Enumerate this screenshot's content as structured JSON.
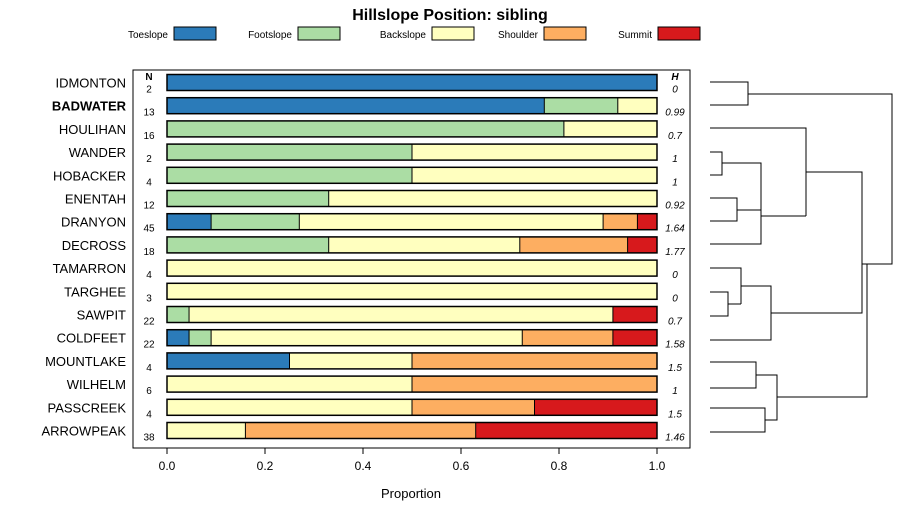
{
  "chart_data": {
    "type": "bar",
    "stacked": true,
    "orientation": "horizontal",
    "title": "Hillslope Position: sibling",
    "xlabel": "Proportion",
    "xlim": [
      0,
      1
    ],
    "xticks": [
      "0.0",
      "0.2",
      "0.4",
      "0.6",
      "0.8",
      "1.0"
    ],
    "n_header": "N",
    "h_header": "H",
    "legend": [
      {
        "name": "Toeslope",
        "color": "#2B7BB9"
      },
      {
        "name": "Footslope",
        "color": "#ABDDA4"
      },
      {
        "name": "Backslope",
        "color": "#FFFFBF"
      },
      {
        "name": "Shoulder",
        "color": "#FDAE61"
      },
      {
        "name": "Summit",
        "color": "#D7191C"
      }
    ],
    "rows": [
      {
        "label": "IDMONTON",
        "n": "2",
        "h": "0",
        "bold": false,
        "values": [
          1.0,
          0,
          0,
          0,
          0
        ]
      },
      {
        "label": "BADWATER",
        "n": "13",
        "h": "0.99",
        "bold": true,
        "values": [
          0.77,
          0.15,
          0.08,
          0,
          0
        ]
      },
      {
        "label": "HOULIHAN",
        "n": "16",
        "h": "0.7",
        "bold": false,
        "values": [
          0,
          0.81,
          0.19,
          0,
          0
        ]
      },
      {
        "label": "WANDER",
        "n": "2",
        "h": "1",
        "bold": false,
        "values": [
          0,
          0.5,
          0.5,
          0,
          0
        ]
      },
      {
        "label": "HOBACKER",
        "n": "4",
        "h": "1",
        "bold": false,
        "values": [
          0,
          0.5,
          0.5,
          0,
          0
        ]
      },
      {
        "label": "ENENTAH",
        "n": "12",
        "h": "0.92",
        "bold": false,
        "values": [
          0,
          0.33,
          0.67,
          0,
          0
        ]
      },
      {
        "label": "DRANYON",
        "n": "45",
        "h": "1.64",
        "bold": false,
        "values": [
          0.09,
          0.18,
          0.62,
          0.07,
          0.04
        ]
      },
      {
        "label": "DECROSS",
        "n": "18",
        "h": "1.77",
        "bold": false,
        "values": [
          0,
          0.33,
          0.39,
          0.22,
          0.06
        ]
      },
      {
        "label": "TAMARRON",
        "n": "4",
        "h": "0",
        "bold": false,
        "values": [
          0,
          0,
          1.0,
          0,
          0
        ]
      },
      {
        "label": "TARGHEE",
        "n": "3",
        "h": "0",
        "bold": false,
        "values": [
          0,
          0,
          1.0,
          0,
          0
        ]
      },
      {
        "label": "SAWPIT",
        "n": "22",
        "h": "0.7",
        "bold": false,
        "values": [
          0,
          0.045,
          0.865,
          0,
          0.09
        ]
      },
      {
        "label": "COLDFEET",
        "n": "22",
        "h": "1.58",
        "bold": false,
        "values": [
          0.045,
          0.045,
          0.635,
          0.185,
          0.09
        ]
      },
      {
        "label": "MOUNTLAKE",
        "n": "4",
        "h": "1.5",
        "bold": false,
        "values": [
          0.25,
          0,
          0.25,
          0.5,
          0
        ]
      },
      {
        "label": "WILHELM",
        "n": "6",
        "h": "1",
        "bold": false,
        "values": [
          0,
          0,
          0.5,
          0.5,
          0
        ]
      },
      {
        "label": "PASSCREEK",
        "n": "4",
        "h": "1.5",
        "bold": false,
        "values": [
          0,
          0,
          0.5,
          0.25,
          0.25
        ]
      },
      {
        "label": "ARROWPEAK",
        "n": "38",
        "h": "1.46",
        "bold": false,
        "values": [
          0,
          0,
          0.16,
          0.47,
          0.37
        ]
      }
    ]
  }
}
